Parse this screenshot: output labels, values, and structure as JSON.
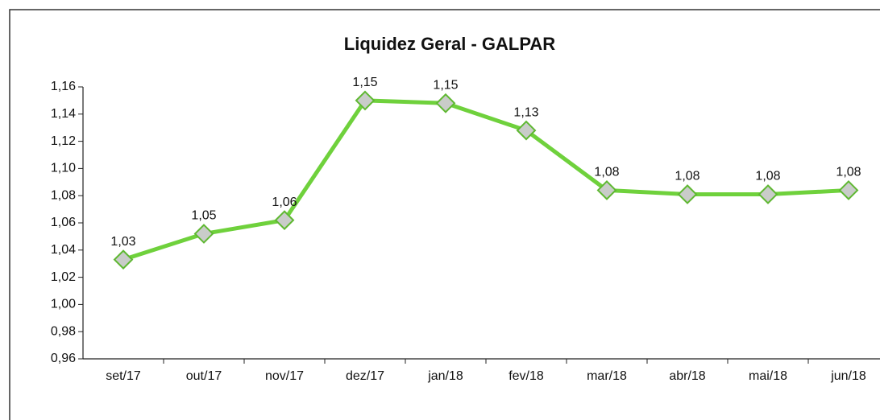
{
  "chart_data": {
    "type": "line",
    "title": "Liquidez Geral - GALPAR",
    "categories": [
      "set/17",
      "out/17",
      "nov/17",
      "dez/17",
      "jan/18",
      "fev/18",
      "mar/18",
      "abr/18",
      "mai/18",
      "jun/18"
    ],
    "series": [
      {
        "name": "Liquidez Geral",
        "color": "#6fd13c",
        "values": [
          1.033,
          1.052,
          1.062,
          1.15,
          1.148,
          1.128,
          1.084,
          1.081,
          1.081,
          1.084
        ],
        "value_labels": [
          "1,03",
          "1,05",
          "1,06",
          "1,15",
          "1,15",
          "1,13",
          "1,08",
          "1,08",
          "1,08",
          "1,08"
        ]
      }
    ],
    "ylim": [
      0.96,
      1.16
    ],
    "yticks": [
      {
        "value": 0.96,
        "label": "0,96"
      },
      {
        "value": 0.98,
        "label": "0,98"
      },
      {
        "value": 1.0,
        "label": "1,00"
      },
      {
        "value": 1.02,
        "label": "1,02"
      },
      {
        "value": 1.04,
        "label": "1,04"
      },
      {
        "value": 1.06,
        "label": "1,06"
      },
      {
        "value": 1.08,
        "label": "1,08"
      },
      {
        "value": 1.1,
        "label": "1,10"
      },
      {
        "value": 1.12,
        "label": "1,12"
      },
      {
        "value": 1.14,
        "label": "1,14"
      },
      {
        "value": 1.16,
        "label": "1,16"
      }
    ],
    "grid": false
  }
}
